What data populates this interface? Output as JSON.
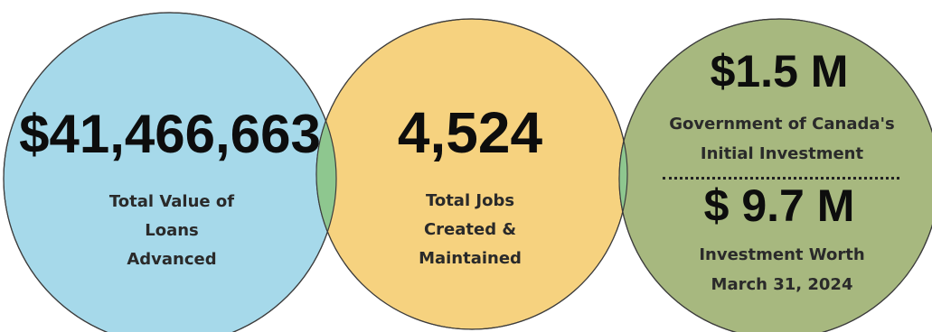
{
  "colors": {
    "circle_loans": "#a6d9ea",
    "circle_jobs": "#f6d27f",
    "circle_investment": "#a7b87f",
    "overlap": "#8ec78f",
    "stroke": "#3d3d3d"
  },
  "loans": {
    "value": "$41,466,663",
    "label_lines": [
      "Total Value of",
      "Loans",
      "Advanced"
    ]
  },
  "jobs": {
    "value": "4,524",
    "label_lines": [
      "Total Jobs",
      "Created &",
      "Maintained"
    ]
  },
  "investment": {
    "initial_value": "$1.5 M",
    "initial_label_lines": [
      "Government of Canada's",
      "Initial Investment"
    ],
    "worth_value": "$ 9.7 M",
    "worth_label_lines": [
      "Investment Worth",
      "March 31, 2024"
    ]
  }
}
